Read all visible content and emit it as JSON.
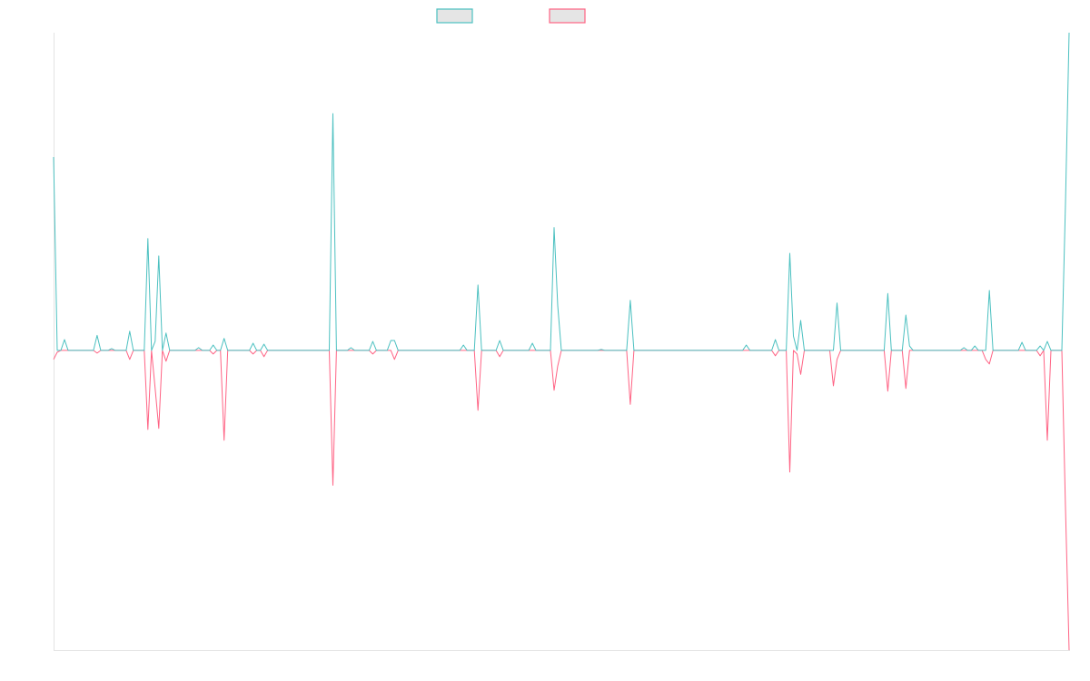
{
  "chart_data": {
    "type": "line",
    "title": "",
    "xlabel": "",
    "ylabel": "",
    "xlim": [
      0,
      280
    ],
    "ylim": [
      -1,
      1.06
    ],
    "grid": false,
    "legend_placement": "top-center",
    "length": 281,
    "series": [
      {
        "name": "",
        "color": "#4bc0c0",
        "legend_fill": "#e5e5e5",
        "spikes": {
          "0": 0.645,
          "3": 0.036,
          "12": 0.05,
          "16": 0.006,
          "21": 0.064,
          "26": 0.373,
          "28": 0.03,
          "29": 0.315,
          "31": 0.058,
          "40": 0.009,
          "44": 0.018,
          "47": 0.04,
          "55": 0.024,
          "58": 0.021,
          "77": 0.79,
          "82": 0.009,
          "88": 0.03,
          "93": 0.033,
          "94": 0.033,
          "113": 0.018,
          "117": 0.218,
          "123": 0.033,
          "132": 0.024,
          "138": 0.41,
          "139": 0.15,
          "151": 0.003,
          "159": 0.167,
          "191": 0.018,
          "199": 0.036,
          "203": 0.324,
          "204": 0.048,
          "206": 0.1,
          "216": 0.158,
          "230": 0.19,
          "235": 0.118,
          "236": 0.015,
          "251": 0.009,
          "254": 0.015,
          "258": 0.2,
          "267": 0.027,
          "272": 0.015,
          "274": 0.03,
          "279": 0.49,
          "280": 1.06
        }
      },
      {
        "name": "",
        "color": "#ff6384",
        "legend_fill": "#e5e5e5",
        "spikes": {
          "0": -0.03,
          "1": -0.006,
          "12": -0.009,
          "21": -0.03,
          "26": -0.264,
          "28": -0.127,
          "29": -0.26,
          "31": -0.036,
          "44": -0.012,
          "47": -0.3,
          "55": -0.012,
          "58": -0.021,
          "77": -0.45,
          "88": -0.012,
          "94": -0.03,
          "117": -0.2,
          "123": -0.021,
          "138": -0.133,
          "139": -0.052,
          "159": -0.18,
          "199": -0.018,
          "203": -0.406,
          "205": -0.012,
          "206": -0.08,
          "215": -0.118,
          "216": -0.03,
          "230": -0.136,
          "235": -0.127,
          "257": -0.03,
          "258": -0.045,
          "272": -0.018,
          "274": -0.3,
          "279": -0.524,
          "280": -1
        }
      }
    ]
  }
}
